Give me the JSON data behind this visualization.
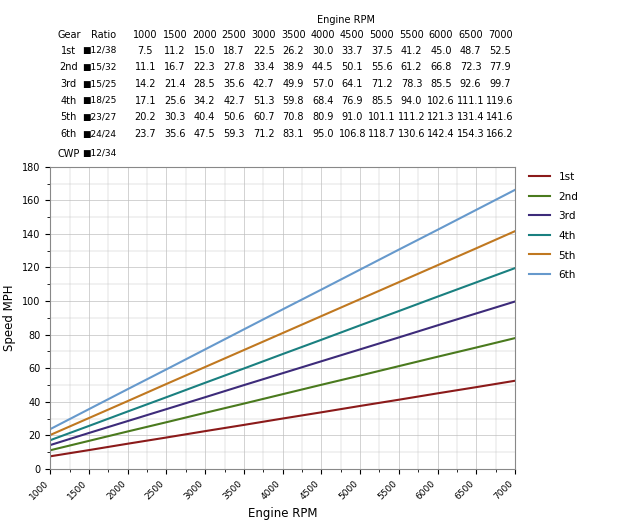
{
  "engine_rpms": [
    1000,
    1500,
    2000,
    2500,
    3000,
    3500,
    4000,
    4500,
    5000,
    5500,
    6000,
    6500,
    7000
  ],
  "gears": {
    "1st": {
      "ratio": "12/38",
      "speeds": [
        7.5,
        11.2,
        15.0,
        18.7,
        22.5,
        26.2,
        30.0,
        33.7,
        37.5,
        41.2,
        45.0,
        48.7,
        52.5
      ],
      "color": "#8B1A1A"
    },
    "2nd": {
      "ratio": "15/32",
      "speeds": [
        11.1,
        16.7,
        22.3,
        27.8,
        33.4,
        38.9,
        44.5,
        50.1,
        55.6,
        61.2,
        66.8,
        72.3,
        77.9
      ],
      "color": "#4a7a1e"
    },
    "3rd": {
      "ratio": "15/25",
      "speeds": [
        14.2,
        21.4,
        28.5,
        35.6,
        42.7,
        49.9,
        57.0,
        64.1,
        71.2,
        78.3,
        85.5,
        92.6,
        99.7
      ],
      "color": "#3d2b7a"
    },
    "4th": {
      "ratio": "18/25",
      "speeds": [
        17.1,
        25.6,
        34.2,
        42.7,
        51.3,
        59.8,
        68.4,
        76.9,
        85.5,
        94.0,
        102.6,
        111.1,
        119.6
      ],
      "color": "#1a8080"
    },
    "5th": {
      "ratio": "23/27",
      "speeds": [
        20.2,
        30.3,
        40.4,
        50.6,
        60.7,
        70.8,
        80.9,
        91.0,
        101.1,
        111.2,
        121.3,
        131.4,
        141.6
      ],
      "color": "#c07820"
    },
    "6th": {
      "ratio": "24/24",
      "speeds": [
        23.7,
        35.6,
        47.5,
        59.3,
        71.2,
        83.1,
        95.0,
        106.8,
        118.7,
        130.6,
        142.4,
        154.3,
        166.2
      ],
      "color": "#6699cc"
    }
  },
  "cwp": "12/34",
  "ylabel": "Speed MPH",
  "xlabel": "Engine RPM",
  "engine_rpm_label": "Engine RPM",
  "ylim": [
    0,
    180
  ],
  "yticks": [
    0,
    20,
    40,
    60,
    80,
    100,
    120,
    140,
    160,
    180
  ],
  "background_color": "#ffffff",
  "grid_color": "#c0c0c0",
  "table_fontsize": 7.0,
  "axis_fontsize": 8.5
}
